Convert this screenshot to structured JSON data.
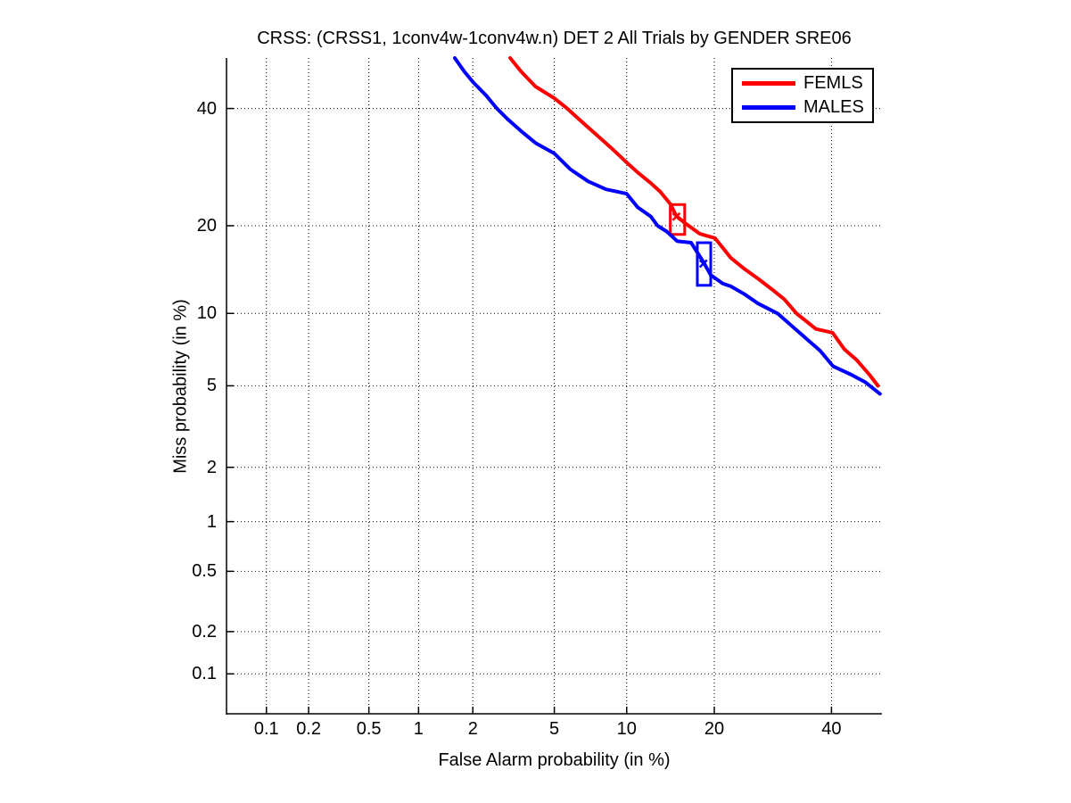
{
  "title": "CRSS: (CRSS1, 1conv4w-1conv4w.n) DET 2 All Trials by GENDER SRE06",
  "chart_data": {
    "type": "line",
    "subtype": "DET-curve",
    "title": "CRSS: (CRSS1, 1conv4w-1conv4w.n) DET 2 All Trials by GENDER SRE06",
    "xlabel": "False Alarm probability (in %)",
    "ylabel": "Miss probability (in %)",
    "x_scale": "probit",
    "y_scale": "probit",
    "xlim": [
      0.05,
      50
    ],
    "ylim": [
      0.05,
      50
    ],
    "x_ticks": [
      0.1,
      0.2,
      0.5,
      1,
      2,
      5,
      10,
      20,
      40
    ],
    "y_ticks": [
      0.1,
      0.2,
      0.5,
      1,
      2,
      5,
      10,
      20,
      40
    ],
    "grid": "dotted",
    "legend_position": "top-right",
    "axis_color": "#000000",
    "background": "#ffffff",
    "series": [
      {
        "name": "FEMLS",
        "color": "#ff0000",
        "points": [
          [
            3.1,
            50
          ],
          [
            3.5,
            47.3
          ],
          [
            4.1,
            44.3
          ],
          [
            5.0,
            42.0
          ],
          [
            5.7,
            40.0
          ],
          [
            6.5,
            37.7
          ],
          [
            7.5,
            35.2
          ],
          [
            8.7,
            32.6
          ],
          [
            10.0,
            30.0
          ],
          [
            11.0,
            28.3
          ],
          [
            12.3,
            26.5
          ],
          [
            13.3,
            25.1
          ],
          [
            14.4,
            23.2
          ],
          [
            15.1,
            21.4
          ],
          [
            16.1,
            20.4
          ],
          [
            18.0,
            18.9
          ],
          [
            20.1,
            18.3
          ],
          [
            22.4,
            15.8
          ],
          [
            24.5,
            14.5
          ],
          [
            26.7,
            13.4
          ],
          [
            29.0,
            12.3
          ],
          [
            31.2,
            11.3
          ],
          [
            33.4,
            10.0
          ],
          [
            35.0,
            9.4
          ],
          [
            37.0,
            8.7
          ],
          [
            40.2,
            8.4
          ],
          [
            42.5,
            7.2
          ],
          [
            44.9,
            6.5
          ],
          [
            47.5,
            5.6
          ],
          [
            49.2,
            5.0
          ]
        ],
        "dcf_box": {
          "fa": [
            14.4,
            16.1
          ],
          "miss": [
            18.8,
            23.1
          ]
        },
        "dcf_point": [
          15.1,
          21.3
        ]
      },
      {
        "name": "MALES",
        "color": "#0000ff",
        "points": [
          [
            1.6,
            50
          ],
          [
            1.8,
            47.3
          ],
          [
            2.0,
            45.2
          ],
          [
            2.35,
            42.5
          ],
          [
            2.66,
            40.0
          ],
          [
            3.0,
            38.0
          ],
          [
            3.5,
            35.7
          ],
          [
            4.1,
            33.5
          ],
          [
            5.0,
            31.6
          ],
          [
            5.9,
            28.8
          ],
          [
            7.0,
            26.8
          ],
          [
            8.3,
            25.5
          ],
          [
            10.0,
            24.8
          ],
          [
            11.0,
            22.7
          ],
          [
            12.3,
            21.3
          ],
          [
            13.0,
            20.0
          ],
          [
            14.0,
            19.2
          ],
          [
            15.2,
            17.9
          ],
          [
            16.9,
            17.7
          ],
          [
            18.5,
            15.3
          ],
          [
            19.5,
            13.8
          ],
          [
            21.2,
            12.9
          ],
          [
            22.4,
            12.6
          ],
          [
            24.5,
            11.8
          ],
          [
            26.7,
            10.9
          ],
          [
            30.0,
            10.0
          ],
          [
            34.8,
            8.1
          ],
          [
            37.8,
            7.1
          ],
          [
            40.3,
            6.1
          ],
          [
            43.9,
            5.6
          ],
          [
            46.6,
            5.2
          ],
          [
            49.6,
            4.6
          ]
        ],
        "dcf_box": {
          "fa": [
            17.7,
            19.5
          ],
          "miss": [
            12.7,
            17.7
          ]
        },
        "dcf_point": [
          18.5,
          15.1
        ]
      }
    ]
  }
}
